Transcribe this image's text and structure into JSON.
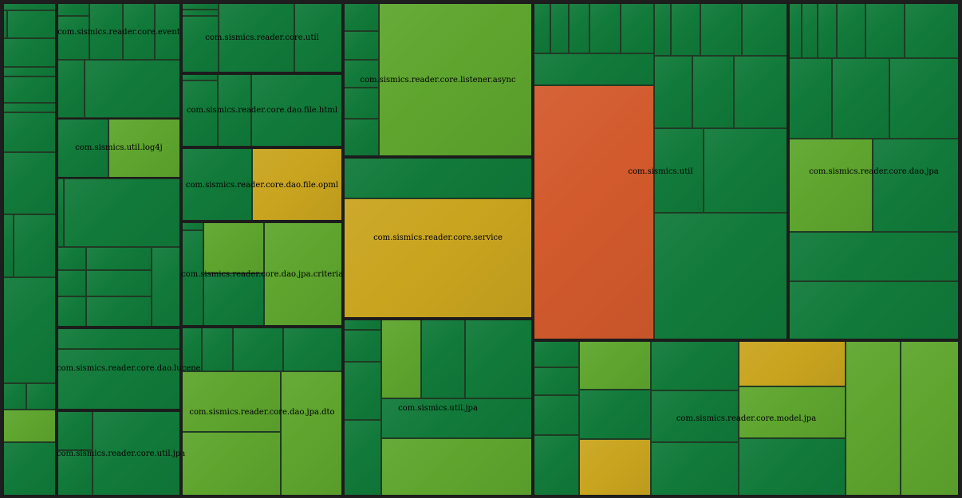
{
  "chart_data": {
    "type": "heatmap",
    "title": "",
    "color_scale": {
      "good": "#117a3a",
      "fair": "#5ea52e",
      "warning": "#c9a41f",
      "bad": "#d25a2c"
    },
    "packages": [
      {
        "name": "",
        "label": ""
      },
      {
        "name": "com.sismics.reader.core.event",
        "label": "com.sismics.reader.core.event"
      },
      {
        "name": "com.sismics.util.log4j",
        "label": "com.sismics.util.log4j"
      },
      {
        "name": "com.sismics.reader.core.dao.lucene",
        "label": "com.sismics.reader.core.dao.lucene"
      },
      {
        "name": "com.sismics.reader.core.util.jpa",
        "label": "com.sismics.reader.core.util.jpa"
      },
      {
        "name": "com.sismics.reader.core.util",
        "label": "com.sismics.reader.core.util"
      },
      {
        "name": "com.sismics.reader.core.dao.file.html",
        "label": "com.sismics.reader.core.dao.file.html"
      },
      {
        "name": "com.sismics.reader.core.dao.file.opml",
        "label": "com.sismics.reader.core.dao.file.opml"
      },
      {
        "name": "com.sismics.reader.core.dao.jpa.criteria",
        "label": "com.sismics.reader.core.dao.jpa.criteria"
      },
      {
        "name": "com.sismics.reader.core.dao.jpa.dto",
        "label": "com.sismics.reader.core.dao.jpa.dto"
      },
      {
        "name": "com.sismics.reader.core.listener.async",
        "label": "com.sismics.reader.core.listener.async"
      },
      {
        "name": "com.sismics.reader.core.service",
        "label": "com.sismics.reader.core.service"
      },
      {
        "name": "com.sismics.util.jpa",
        "label": "com.sismics.util.jpa"
      },
      {
        "name": "com.sismics.util",
        "label": "com.sismics.util"
      },
      {
        "name": "com.sismics.reader.core.dao.jpa",
        "label": "com.sismics.reader.core.dao.jpa"
      },
      {
        "name": "com.sismics.reader.core.model.jpa",
        "label": "com.sismics.reader.core.model.jpa"
      }
    ]
  }
}
